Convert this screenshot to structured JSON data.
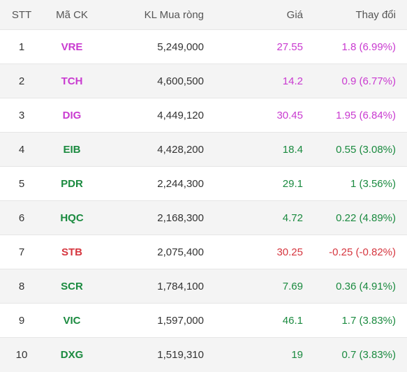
{
  "headers": {
    "stt": "STT",
    "code": "Mã CK",
    "volume": "KL Mua ròng",
    "price": "Giá",
    "change": "Thay đổi"
  },
  "colors": {
    "ceiling": "#c93ad0",
    "up": "#1a8a3f",
    "down": "#d6363f",
    "header_bg": "#f4f4f4",
    "alt_row_bg": "#f4f4f4"
  },
  "rows": [
    {
      "stt": "1",
      "code": "VRE",
      "volume": "5,249,000",
      "price": "27.55",
      "change": "1.8 (6.99%)",
      "status": "ceiling"
    },
    {
      "stt": "2",
      "code": "TCH",
      "volume": "4,600,500",
      "price": "14.2",
      "change": "0.9 (6.77%)",
      "status": "ceiling"
    },
    {
      "stt": "3",
      "code": "DIG",
      "volume": "4,449,120",
      "price": "30.45",
      "change": "1.95 (6.84%)",
      "status": "ceiling"
    },
    {
      "stt": "4",
      "code": "EIB",
      "volume": "4,428,200",
      "price": "18.4",
      "change": "0.55 (3.08%)",
      "status": "up"
    },
    {
      "stt": "5",
      "code": "PDR",
      "volume": "2,244,300",
      "price": "29.1",
      "change": "1 (3.56%)",
      "status": "up"
    },
    {
      "stt": "6",
      "code": "HQC",
      "volume": "2,168,300",
      "price": "4.72",
      "change": "0.22 (4.89%)",
      "status": "up"
    },
    {
      "stt": "7",
      "code": "STB",
      "volume": "2,075,400",
      "price": "30.25",
      "change": "-0.25 (-0.82%)",
      "status": "down"
    },
    {
      "stt": "8",
      "code": "SCR",
      "volume": "1,784,100",
      "price": "7.69",
      "change": "0.36 (4.91%)",
      "status": "up"
    },
    {
      "stt": "9",
      "code": "VIC",
      "volume": "1,597,000",
      "price": "46.1",
      "change": "1.7 (3.83%)",
      "status": "up"
    },
    {
      "stt": "10",
      "code": "DXG",
      "volume": "1,519,310",
      "price": "19",
      "change": "0.7 (3.83%)",
      "status": "up"
    }
  ]
}
